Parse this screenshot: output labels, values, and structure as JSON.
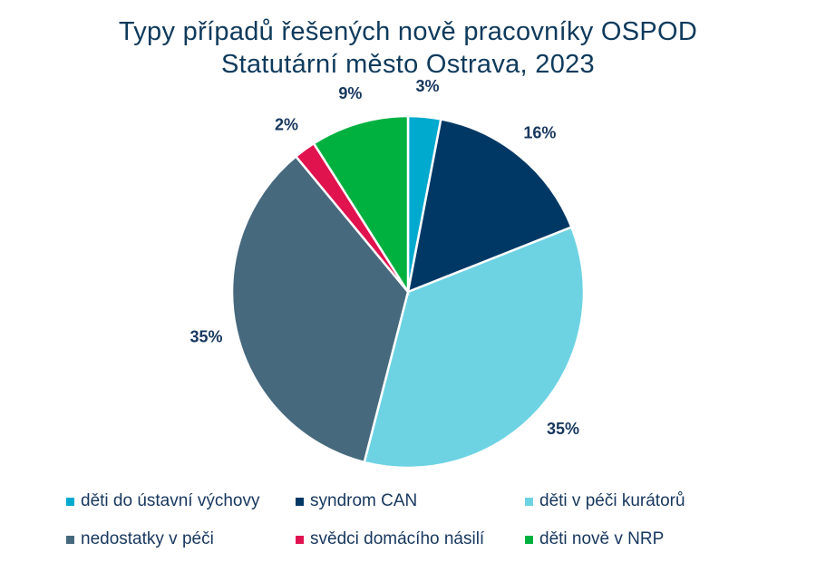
{
  "chart_data": {
    "type": "pie",
    "title": "Typy případů řešených nově pracovníky OSPOD",
    "subtitle": "Statutární město Ostrava, 2023",
    "categories": [
      "děti do ústavní výchovy",
      "syndrom CAN",
      "děti v péči kurátorů",
      "nedostatky v péči",
      "svědci domácího násilí",
      "děti nově v NRP"
    ],
    "values": [
      3,
      16,
      35,
      35,
      2,
      9
    ],
    "labels": [
      "3%",
      "16%",
      "35%",
      "35%",
      "2%",
      "9%"
    ],
    "colors": [
      "#00a9ce",
      "#003865",
      "#6dd3e3",
      "#46697d",
      "#e0134f",
      "#00b140"
    ],
    "legend_position": "bottom"
  }
}
